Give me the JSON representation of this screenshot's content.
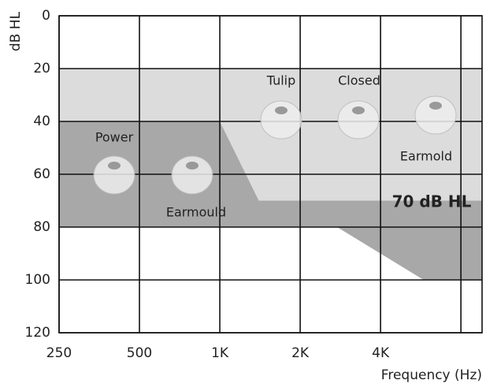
{
  "chart_data": {
    "type": "area",
    "y_label": "dB HL",
    "x_label": "Frequency (Hz)",
    "log_x": true,
    "y_inverted": true,
    "grid": true,
    "xlim": [
      250,
      9600
    ],
    "ylim": [
      0,
      120
    ],
    "xticks": [
      250,
      500,
      {
        "value": 1000,
        "label": "1K"
      },
      {
        "value": 2000,
        "label": "2K"
      },
      {
        "value": 4000,
        "label": "4K"
      },
      {
        "value": 8000,
        "label": null
      }
    ],
    "yticks": [
      0,
      20,
      40,
      60,
      80,
      100,
      120
    ],
    "regions": [
      {
        "color": "#dcdcdc",
        "x": [
          250,
          9600,
          9600,
          1400,
          1000,
          250
        ],
        "values": [
          20,
          20,
          70,
          70,
          40,
          40
        ]
      },
      {
        "color": "#a8a8a8",
        "x": [
          250,
          1000,
          1400,
          9600,
          9600,
          5800,
          2750,
          250
        ],
        "values": [
          40,
          40,
          70,
          70,
          100,
          100,
          80,
          80
        ]
      }
    ],
    "annotations": [
      "Power",
      "Earmould",
      "Tulip",
      "Closed",
      "Earmold",
      "70 dB HL"
    ]
  }
}
